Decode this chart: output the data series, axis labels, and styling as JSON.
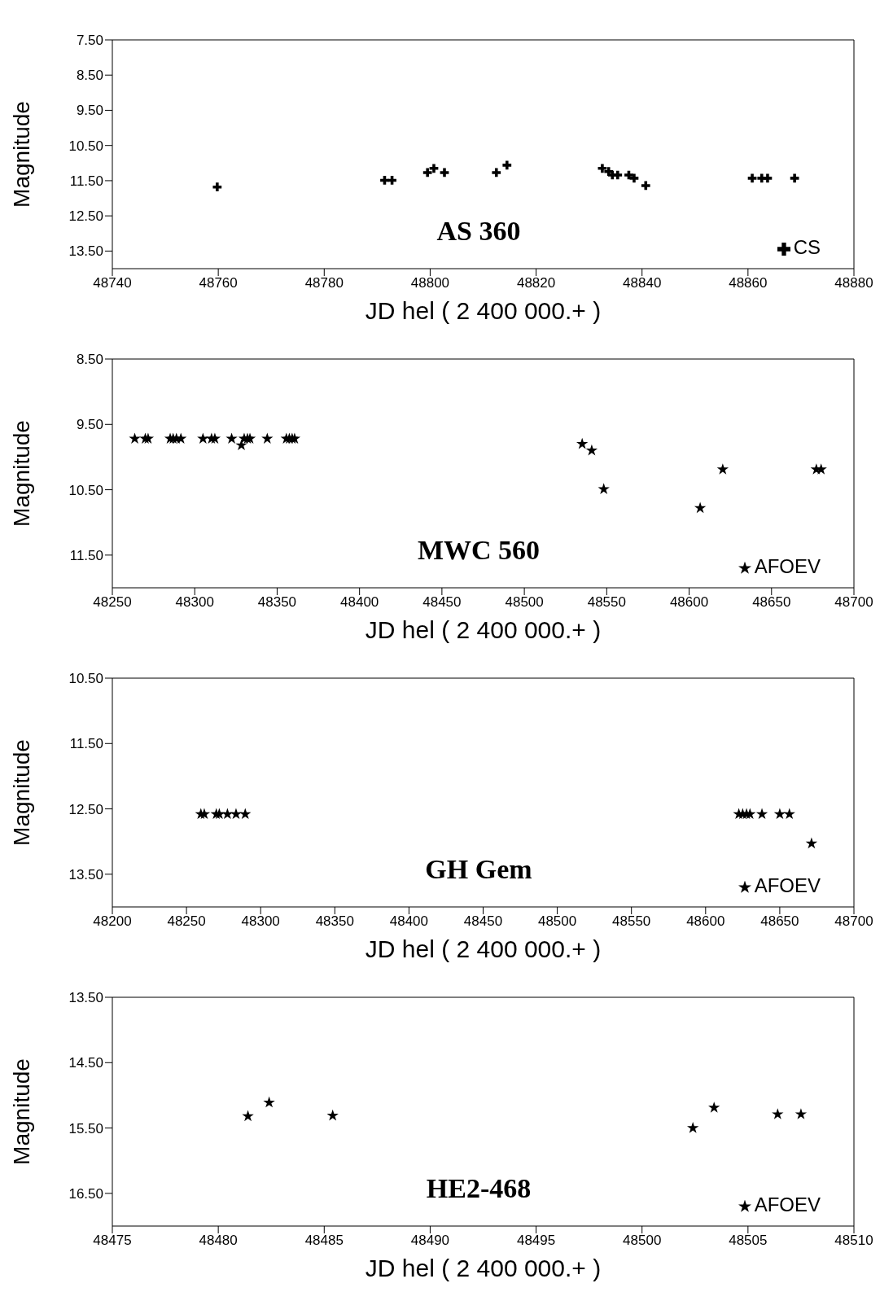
{
  "chart_data": [
    {
      "type": "scatter",
      "title": "AS 360",
      "xlabel": "JD hel ( 2 400 000.+ )",
      "ylabel": "Magnitude",
      "marker": "cross",
      "legend": "bottom right",
      "grid": false,
      "xlim": [
        48740,
        48880
      ],
      "xticks": [
        48740,
        48760,
        48780,
        48800,
        48820,
        48840,
        48860,
        48880
      ],
      "ylim": [
        14.0,
        7.5
      ],
      "yticks": [
        {
          "value": 7.5,
          "label": "7.50"
        },
        {
          "value": 8.5,
          "label": "8.50"
        },
        {
          "value": 9.5,
          "label": "9.50"
        },
        {
          "value": 10.5,
          "label": "10.50"
        },
        {
          "value": 11.5,
          "label": "11.50"
        },
        {
          "value": 12.5,
          "label": "12.50"
        },
        {
          "value": 13.5,
          "label": "13.50"
        }
      ],
      "series": [
        {
          "name": "CS",
          "color": "#000000",
          "x": [
            48759.8,
            48791.4,
            48792.8,
            48799.5,
            48800.7,
            48802.7,
            48812.5,
            48814.5,
            48832.5,
            48833.7,
            48834.4,
            48835.4,
            48837.5,
            48838.5,
            48840.7,
            48860.8,
            48862.6,
            48863.7,
            48868.8
          ],
          "values": [
            11.68,
            11.49,
            11.49,
            11.27,
            11.15,
            11.27,
            11.27,
            11.06,
            11.15,
            11.24,
            11.34,
            11.34,
            11.34,
            11.43,
            11.64,
            11.43,
            11.43,
            11.43,
            11.43
          ]
        }
      ]
    },
    {
      "type": "scatter",
      "title": "MWC 560",
      "xlabel": "JD hel ( 2 400 000.+ )",
      "ylabel": "Magnitude",
      "marker": "star",
      "legend": "bottom right",
      "grid": false,
      "xlim": [
        48250,
        48700
      ],
      "xticks": [
        48250,
        48300,
        48350,
        48400,
        48450,
        48500,
        48550,
        48600,
        48650,
        48700
      ],
      "ylim": [
        12.0,
        8.5
      ],
      "yticks": [
        {
          "value": 8.5,
          "label": "8.50"
        },
        {
          "value": 9.5,
          "label": "9.50"
        },
        {
          "value": 10.5,
          "label": "10.50"
        },
        {
          "value": 11.5,
          "label": "11.50"
        }
      ],
      "series": [
        {
          "name": "AFOEV",
          "color": "#000000",
          "x": [
            48263.6,
            48270.0,
            48271.7,
            48285.1,
            48286.9,
            48288.9,
            48291.6,
            48305.0,
            48310.2,
            48312.2,
            48322.4,
            48328.3,
            48330.0,
            48332.0,
            48333.5,
            48344.0,
            48355.6,
            48357.4,
            48359.1,
            48360.6,
            48535.1,
            48540.9,
            48548.2,
            48606.7,
            48620.4,
            48677.2,
            48680.1
          ],
          "values": [
            9.72,
            9.72,
            9.72,
            9.72,
            9.72,
            9.72,
            9.72,
            9.72,
            9.72,
            9.72,
            9.72,
            9.82,
            9.72,
            9.72,
            9.72,
            9.72,
            9.72,
            9.72,
            9.72,
            9.72,
            9.8,
            9.9,
            10.49,
            10.78,
            10.19,
            10.19,
            10.19
          ]
        }
      ]
    },
    {
      "type": "scatter",
      "title": "GH Gem",
      "xlabel": "JD hel ( 2 400 000.+ )",
      "ylabel": "Magnitude",
      "marker": "star",
      "legend": "bottom right",
      "grid": false,
      "xlim": [
        48200,
        48700
      ],
      "xticks": [
        48200,
        48250,
        48300,
        48350,
        48400,
        48450,
        48500,
        48550,
        48600,
        48650,
        48700
      ],
      "ylim": [
        14.0,
        10.5
      ],
      "yticks": [
        {
          "value": 10.5,
          "label": "10.50"
        },
        {
          "value": 11.5,
          "label": "11.50"
        },
        {
          "value": 12.5,
          "label": "12.50"
        },
        {
          "value": 13.5,
          "label": "13.50"
        }
      ],
      "series": [
        {
          "name": "AFOEV",
          "color": "#000000",
          "x": [
            48259.7,
            48262.0,
            48270.1,
            48272.1,
            48277.6,
            48283.4,
            48289.6,
            48622.4,
            48625.0,
            48627.6,
            48629.9,
            48638.0,
            48650.0,
            48656.5,
            48671.4
          ],
          "values": [
            12.58,
            12.58,
            12.58,
            12.58,
            12.58,
            12.58,
            12.58,
            12.58,
            12.58,
            12.58,
            12.58,
            12.58,
            12.58,
            12.58,
            13.03
          ]
        }
      ]
    },
    {
      "type": "scatter",
      "title": "HE2-468",
      "xlabel": "JD hel ( 2 400 000.+ )",
      "ylabel": "Magnitude",
      "marker": "star",
      "legend": "bottom right",
      "grid": false,
      "xlim": [
        48475,
        48510
      ],
      "xticks": [
        48475,
        48480,
        48485,
        48490,
        48495,
        48500,
        48505,
        48510
      ],
      "ylim": [
        17.0,
        13.5
      ],
      "yticks": [
        {
          "value": 13.5,
          "label": "13.50"
        },
        {
          "value": 14.5,
          "label": "14.50"
        },
        {
          "value": 15.5,
          "label": "15.50"
        },
        {
          "value": 16.5,
          "label": "16.50"
        }
      ],
      "series": [
        {
          "name": "AFOEV",
          "color": "#000000",
          "x": [
            48481.4,
            48482.4,
            48485.4,
            48502.4,
            48503.4,
            48506.4,
            48507.5
          ],
          "values": [
            15.32,
            15.11,
            15.31,
            15.5,
            15.19,
            15.29,
            15.29
          ]
        }
      ]
    }
  ]
}
